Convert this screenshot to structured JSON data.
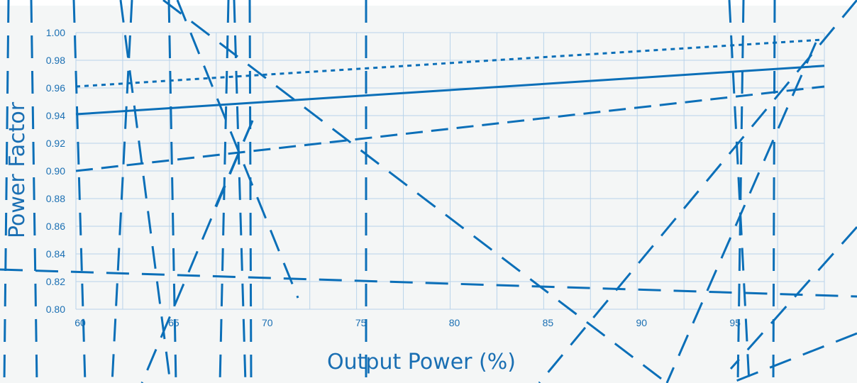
{
  "chart_data": {
    "type": "line",
    "title": "",
    "xlabel": "Output Power (%)",
    "ylabel": "Power Factor",
    "xlim": [
      60,
      100
    ],
    "ylim": [
      0.8,
      1.0
    ],
    "x_ticks": [
      "60",
      "65",
      "70",
      "75",
      "80",
      "85",
      "90",
      "95"
    ],
    "y_ticks": [
      "0.80",
      "0.82",
      "0.84",
      "0.86",
      "0.88",
      "0.90",
      "0.92",
      "0.94",
      "0.96",
      "0.98",
      "1.00"
    ],
    "grid": true,
    "series": [
      {
        "style": "dotted",
        "x": [
          60,
          100
        ],
        "y": [
          0.961,
          0.995
        ]
      },
      {
        "style": "solid",
        "x": [
          60,
          100
        ],
        "y": [
          0.941,
          0.976
        ]
      },
      {
        "style": "dashed",
        "x": [
          60,
          100
        ],
        "y": [
          0.9,
          0.961
        ]
      }
    ],
    "colors": {
      "line": "#0b6fb8",
      "grid": "#b9d3ea",
      "text": "#1a6fb3",
      "background": "#f4f6f6"
    }
  }
}
